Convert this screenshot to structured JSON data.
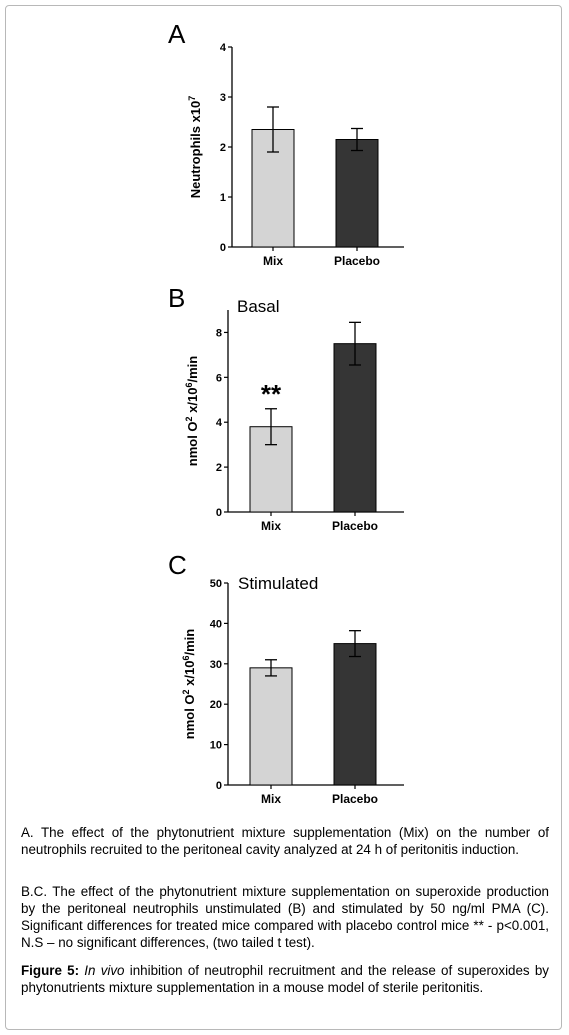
{
  "chart_data": [
    {
      "type": "bar",
      "panel": "A",
      "title": "",
      "xlabel": "",
      "ylabel_main": "Neutrophils x10",
      "ylabel_sup": "7",
      "ylabel_tail": "",
      "categories": [
        "Mix",
        "Placebo"
      ],
      "values": [
        2.35,
        2.15
      ],
      "errors": [
        0.45,
        0.22
      ],
      "bar_colors": [
        "#d4d4d4",
        "#353535"
      ],
      "ylim": [
        0,
        4
      ],
      "yticks": [
        0,
        1,
        2,
        3,
        4
      ],
      "annotations": []
    },
    {
      "type": "bar",
      "panel": "B",
      "title": "Basal",
      "xlabel": "",
      "ylabel_main": "nmol O",
      "ylabel_sup": "2",
      "ylabel_mid": " x/10",
      "ylabel_sup2": "6",
      "ylabel_tail": "/min",
      "categories": [
        "Mix",
        "Placebo"
      ],
      "values": [
        3.8,
        7.5
      ],
      "errors": [
        0.8,
        0.95
      ],
      "bar_colors": [
        "#d4d4d4",
        "#353535"
      ],
      "ylim": [
        0,
        9
      ],
      "yticks": [
        0,
        2,
        4,
        6,
        8
      ],
      "annotations": [
        {
          "category": "Mix",
          "text": "**"
        }
      ]
    },
    {
      "type": "bar",
      "panel": "C",
      "title": "Stimulated",
      "xlabel": "",
      "ylabel_main": "nmol O",
      "ylabel_sup": "2",
      "ylabel_mid": " x/10",
      "ylabel_sup2": "6",
      "ylabel_tail": "/min",
      "categories": [
        "Mix",
        "Placebo"
      ],
      "values": [
        29,
        35
      ],
      "errors": [
        2,
        3.2
      ],
      "bar_colors": [
        "#d4d4d4",
        "#353535"
      ],
      "ylim": [
        0,
        50
      ],
      "yticks": [
        0,
        10,
        20,
        30,
        40,
        50
      ],
      "annotations": []
    }
  ],
  "caption": {
    "a": "A. The effect of the phytonutrient mixture supplementation (Mix) on the number of neutrophils recruited to the peritoneal cavity analyzed at 24 h of peritonitis induction.",
    "bc": "B.C. The effect of the phytonutrient mixture supplementation on superoxide production by the peritoneal neutrophils unstimulated (B) and stimulated by 50 ng/ml PMA (C). Significant differences for treated mice compared with placebo control mice ** - p<0.001, N.S – no significant differences, (two tailed t test).",
    "figure_label": "Figure 5:",
    "figure_italic": "In vivo",
    "figure_text": " inhibition of neutrophil recruitment and the release of superoxides by phytonutrients mixture supplementation in a mouse model of sterile peritonitis."
  }
}
